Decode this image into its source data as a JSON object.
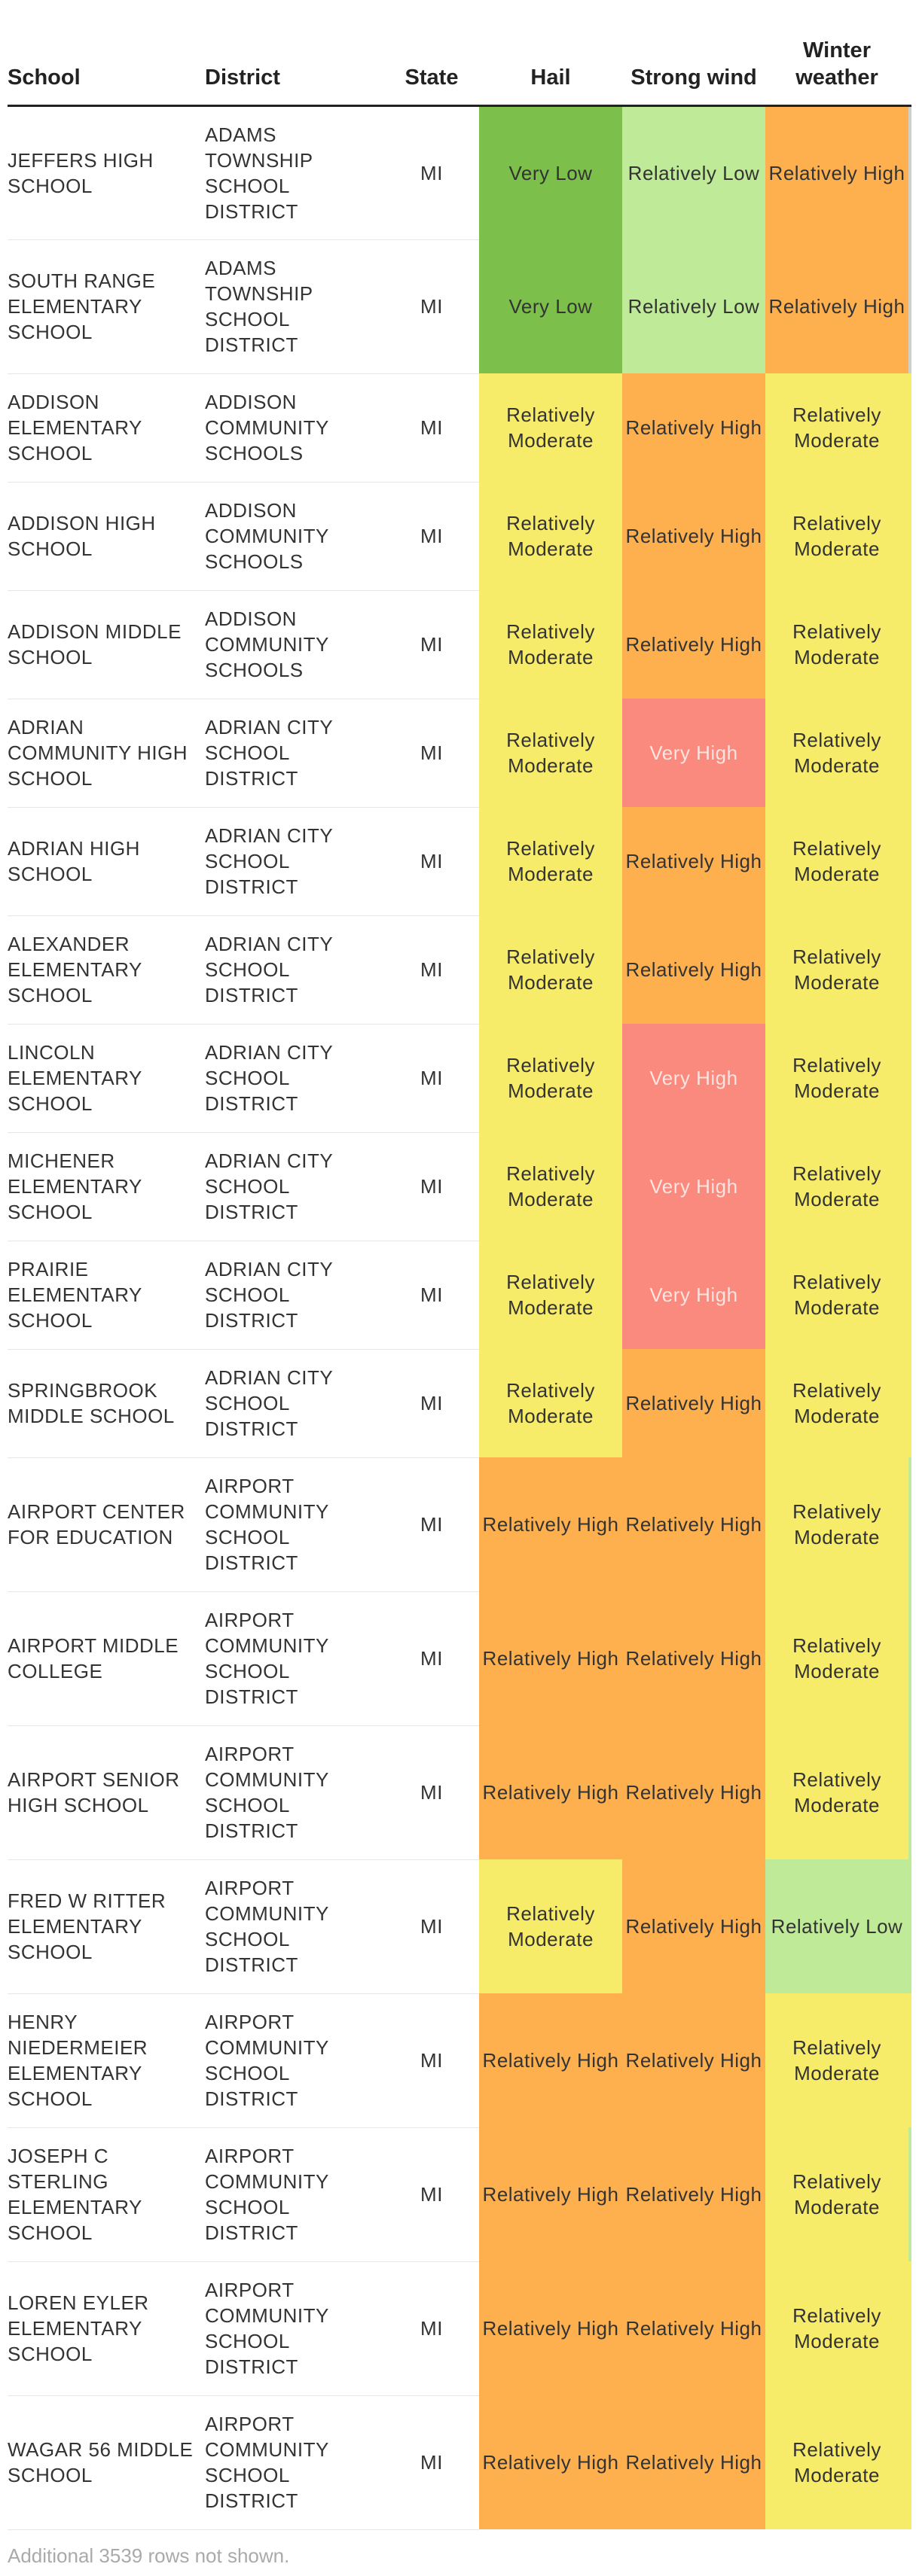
{
  "headers": {
    "school": "School",
    "district": "District",
    "state": "State",
    "hail": "Hail",
    "strong_wind": "Strong wind",
    "winter_weather": "Winter weather"
  },
  "colors": {
    "Very Low": "#7cbf4a",
    "Relatively Low": "#bfea98",
    "Relatively Moderate": "#f7ec6a",
    "Relatively High": "#feb04f",
    "Very High": "#fa8a7e"
  },
  "rows": [
    {
      "school": "JEFFERS HIGH SCHOOL",
      "district": "ADAMS TOWNSHIP SCHOOL DISTRICT",
      "state": "MI",
      "hail": "Very Low",
      "wind": "Relatively Low",
      "winter": "Relatively High",
      "edge": "#cfcfcf"
    },
    {
      "school": "SOUTH RANGE ELEMENTARY SCHOOL",
      "district": "ADAMS TOWNSHIP SCHOOL DISTRICT",
      "state": "MI",
      "hail": "Very Low",
      "wind": "Relatively Low",
      "winter": "Relatively High",
      "edge": "#cfcfcf"
    },
    {
      "school": "ADDISON ELEMENTARY SCHOOL",
      "district": "ADDISON COMMUNITY SCHOOLS",
      "state": "MI",
      "hail": "Relatively Moderate",
      "wind": "Relatively High",
      "winter": "Relatively Moderate",
      "edge": "#f7ec6a"
    },
    {
      "school": "ADDISON HIGH SCHOOL",
      "district": "ADDISON COMMUNITY SCHOOLS",
      "state": "MI",
      "hail": "Relatively Moderate",
      "wind": "Relatively High",
      "winter": "Relatively Moderate",
      "edge": "#f7ec6a"
    },
    {
      "school": "ADDISON MIDDLE SCHOOL",
      "district": "ADDISON COMMUNITY SCHOOLS",
      "state": "MI",
      "hail": "Relatively Moderate",
      "wind": "Relatively High",
      "winter": "Relatively Moderate",
      "edge": "#f7ec6a"
    },
    {
      "school": "ADRIAN COMMUNITY HIGH SCHOOL",
      "district": "ADRIAN CITY SCHOOL DISTRICT",
      "state": "MI",
      "hail": "Relatively Moderate",
      "wind": "Very High",
      "winter": "Relatively Moderate",
      "edge": "#f7ec6a"
    },
    {
      "school": "ADRIAN HIGH SCHOOL",
      "district": "ADRIAN CITY SCHOOL DISTRICT",
      "state": "MI",
      "hail": "Relatively Moderate",
      "wind": "Relatively High",
      "winter": "Relatively Moderate",
      "edge": "#f7ec6a"
    },
    {
      "school": "ALEXANDER ELEMENTARY SCHOOL",
      "district": "ADRIAN CITY SCHOOL DISTRICT",
      "state": "MI",
      "hail": "Relatively Moderate",
      "wind": "Relatively High",
      "winter": "Relatively Moderate",
      "edge": "#f7ec6a"
    },
    {
      "school": "LINCOLN ELEMENTARY SCHOOL",
      "district": "ADRIAN CITY SCHOOL DISTRICT",
      "state": "MI",
      "hail": "Relatively Moderate",
      "wind": "Very High",
      "winter": "Relatively Moderate",
      "edge": "#f7ec6a"
    },
    {
      "school": "MICHENER ELEMENTARY SCHOOL",
      "district": "ADRIAN CITY SCHOOL DISTRICT",
      "state": "MI",
      "hail": "Relatively Moderate",
      "wind": "Very High",
      "winter": "Relatively Moderate",
      "edge": "#f7ec6a"
    },
    {
      "school": "PRAIRIE ELEMENTARY SCHOOL",
      "district": "ADRIAN CITY SCHOOL DISTRICT",
      "state": "MI",
      "hail": "Relatively Moderate",
      "wind": "Very High",
      "winter": "Relatively Moderate",
      "edge": "#f7ec6a"
    },
    {
      "school": "SPRINGBROOK MIDDLE SCHOOL",
      "district": "ADRIAN CITY SCHOOL DISTRICT",
      "state": "MI",
      "hail": "Relatively Moderate",
      "wind": "Relatively High",
      "winter": "Relatively Moderate",
      "edge": "#f7ec6a"
    },
    {
      "school": "AIRPORT CENTER FOR EDUCATION",
      "district": "AIRPORT COMMUNITY SCHOOL DISTRICT",
      "state": "MI",
      "hail": "Relatively High",
      "wind": "Relatively High",
      "winter": "Relatively Moderate",
      "edge": "#bfea98"
    },
    {
      "school": "AIRPORT MIDDLE COLLEGE",
      "district": "AIRPORT COMMUNITY SCHOOL DISTRICT",
      "state": "MI",
      "hail": "Relatively High",
      "wind": "Relatively High",
      "winter": "Relatively Moderate",
      "edge": "#bfea98"
    },
    {
      "school": "AIRPORT SENIOR HIGH SCHOOL",
      "district": "AIRPORT COMMUNITY SCHOOL DISTRICT",
      "state": "MI",
      "hail": "Relatively High",
      "wind": "Relatively High",
      "winter": "Relatively Moderate",
      "edge": "#bfea98"
    },
    {
      "school": "FRED W RITTER ELEMENTARY SCHOOL",
      "district": "AIRPORT COMMUNITY SCHOOL DISTRICT",
      "state": "MI",
      "hail": "Relatively Moderate",
      "wind": "Relatively High",
      "winter": "Relatively Low",
      "edge": "#bfea98"
    },
    {
      "school": "HENRY NIEDERMEIER ELEMENTARY SCHOOL",
      "district": "AIRPORT COMMUNITY SCHOOL DISTRICT",
      "state": "MI",
      "hail": "Relatively High",
      "wind": "Relatively High",
      "winter": "Relatively Moderate",
      "edge": "#f7ec6a"
    },
    {
      "school": "JOSEPH C STERLING ELEMENTARY SCHOOL",
      "district": "AIRPORT COMMUNITY SCHOOL DISTRICT",
      "state": "MI",
      "hail": "Relatively High",
      "wind": "Relatively High",
      "winter": "Relatively Moderate",
      "edge": "#bfea98"
    },
    {
      "school": "LOREN EYLER ELEMENTARY SCHOOL",
      "district": "AIRPORT COMMUNITY SCHOOL DISTRICT",
      "state": "MI",
      "hail": "Relatively High",
      "wind": "Relatively High",
      "winter": "Relatively Moderate",
      "edge": "#f7ec6a"
    },
    {
      "school": "WAGAR 56 MIDDLE SCHOOL",
      "district": "AIRPORT COMMUNITY SCHOOL DISTRICT",
      "state": "MI",
      "hail": "Relatively High",
      "wind": "Relatively High",
      "winter": "Relatively Moderate",
      "edge": "#f7ec6a"
    }
  ],
  "footer": "Additional 3539 rows not shown."
}
